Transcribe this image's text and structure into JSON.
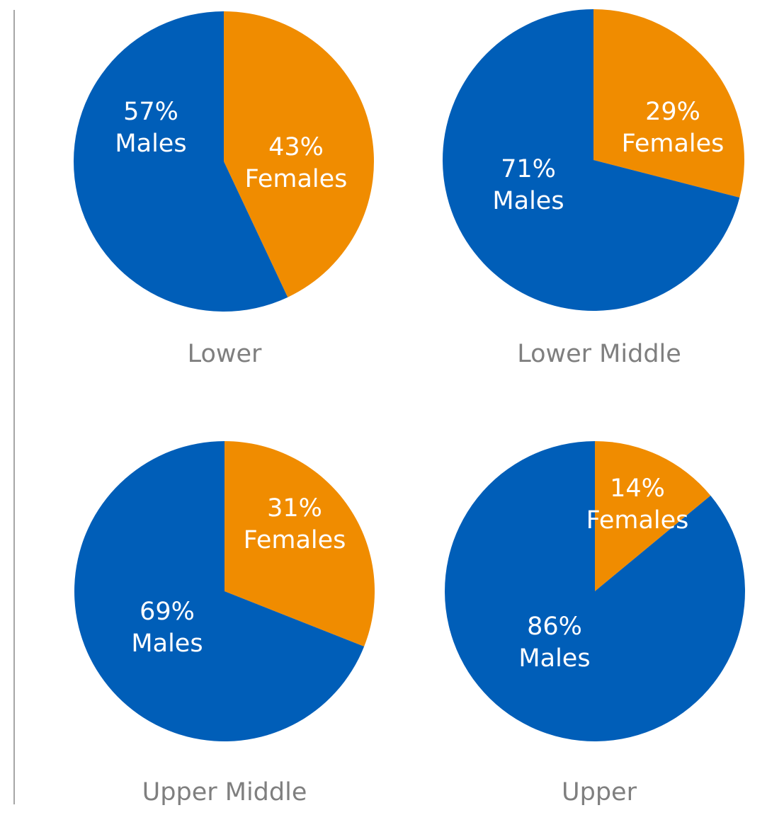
{
  "colors": {
    "males": "#005EB8",
    "females": "#F08C00",
    "caption": "#7F7F7F",
    "axis_line": "#A6A6A6"
  },
  "pies": [
    {
      "title": "Lower",
      "males": {
        "pct": "57%",
        "label": "Males"
      },
      "females": {
        "pct": "43%",
        "label": "Females"
      }
    },
    {
      "title": "Lower Middle",
      "males": {
        "pct": "71%",
        "label": "Males"
      },
      "females": {
        "pct": "29%",
        "label": "Females"
      }
    },
    {
      "title": "Upper Middle",
      "males": {
        "pct": "69%",
        "label": "Males"
      },
      "females": {
        "pct": "31%",
        "label": "Females"
      }
    },
    {
      "title": "Upper",
      "males": {
        "pct": "86%",
        "label": "Males"
      },
      "females": {
        "pct": "14%",
        "label": "Females"
      }
    }
  ],
  "chart_data": [
    {
      "type": "pie",
      "title": "Lower",
      "categories": [
        "Males",
        "Females"
      ],
      "values": [
        57,
        43
      ],
      "colors": [
        "#005EB8",
        "#F08C00"
      ]
    },
    {
      "type": "pie",
      "title": "Lower Middle",
      "categories": [
        "Males",
        "Females"
      ],
      "values": [
        71,
        29
      ],
      "colors": [
        "#005EB8",
        "#F08C00"
      ]
    },
    {
      "type": "pie",
      "title": "Upper Middle",
      "categories": [
        "Males",
        "Females"
      ],
      "values": [
        69,
        31
      ],
      "colors": [
        "#005EB8",
        "#F08C00"
      ]
    },
    {
      "type": "pie",
      "title": "Upper",
      "categories": [
        "Males",
        "Females"
      ],
      "values": [
        86,
        14
      ],
      "colors": [
        "#005EB8",
        "#F08C00"
      ]
    }
  ]
}
